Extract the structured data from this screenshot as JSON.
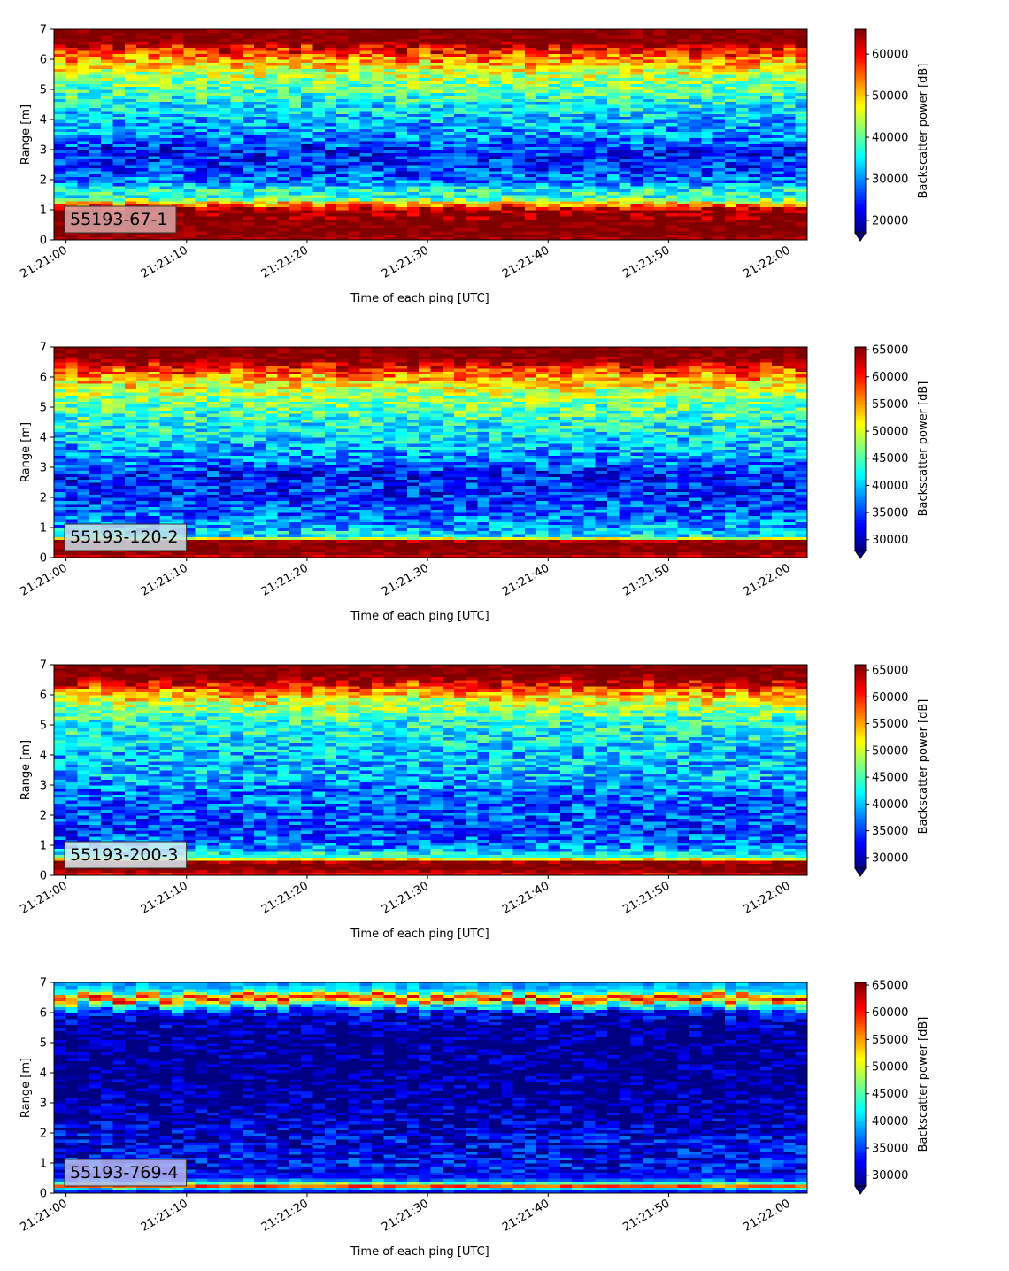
{
  "chart_data": [
    {
      "type": "heatmap",
      "label_box": "55193-67-1",
      "xlabel": "Time of each ping [UTC]",
      "ylabel": "Range [m]",
      "x_ticks": [
        "21:21:00",
        "21:21:10",
        "21:21:20",
        "21:21:30",
        "21:21:40",
        "21:21:50",
        "21:22:00"
      ],
      "y_ticks": [
        0,
        1,
        2,
        3,
        4,
        5,
        6,
        7
      ],
      "xlim_seconds": [
        -1,
        61.5
      ],
      "ylim": [
        0,
        7
      ],
      "colorbar_label": "Backscatter power [dB]",
      "colorbar_ticks": [
        20000,
        30000,
        40000,
        50000,
        60000
      ],
      "colorbar_range": [
        17000,
        66000
      ],
      "colormap": "jet",
      "label_box_color": "#d9a7a7",
      "profile": [
        {
          "z": 0.0,
          "v": 64000
        },
        {
          "z": 0.25,
          "v": 66000
        },
        {
          "z": 1.0,
          "v": 66000
        },
        {
          "z": 1.2,
          "v": 52000
        },
        {
          "z": 1.4,
          "v": 38000
        },
        {
          "z": 1.7,
          "v": 36000
        },
        {
          "z": 1.9,
          "v": 30000
        },
        {
          "z": 2.3,
          "v": 26000
        },
        {
          "z": 3.0,
          "v": 24000
        },
        {
          "z": 3.4,
          "v": 30000
        },
        {
          "z": 4.0,
          "v": 32000
        },
        {
          "z": 4.6,
          "v": 36000
        },
        {
          "z": 5.2,
          "v": 41000
        },
        {
          "z": 5.7,
          "v": 47000
        },
        {
          "z": 6.2,
          "v": 56000
        },
        {
          "z": 6.6,
          "v": 66000
        },
        {
          "z": 7.0,
          "v": 66000
        }
      ]
    },
    {
      "type": "heatmap",
      "label_box": "55193-120-2",
      "xlabel": "Time of each ping [UTC]",
      "ylabel": "Range [m]",
      "x_ticks": [
        "21:21:00",
        "21:21:10",
        "21:21:20",
        "21:21:30",
        "21:21:40",
        "21:21:50",
        "21:22:00"
      ],
      "y_ticks": [
        0,
        1,
        2,
        3,
        4,
        5,
        6,
        7
      ],
      "xlim_seconds": [
        -1,
        61.5
      ],
      "ylim": [
        0,
        7
      ],
      "colorbar_label": "Backscatter power [dB]",
      "colorbar_ticks": [
        30000,
        35000,
        40000,
        45000,
        50000,
        55000,
        60000,
        65000
      ],
      "colorbar_range": [
        28000,
        65500
      ],
      "colormap": "jet",
      "label_box_color": "#c9dfe6",
      "profile": [
        {
          "z": 0.0,
          "v": 62000
        },
        {
          "z": 0.2,
          "v": 65500
        },
        {
          "z": 0.55,
          "v": 65500
        },
        {
          "z": 0.7,
          "v": 42000
        },
        {
          "z": 1.0,
          "v": 39000
        },
        {
          "z": 1.5,
          "v": 36000
        },
        {
          "z": 2.2,
          "v": 34000
        },
        {
          "z": 2.8,
          "v": 33500
        },
        {
          "z": 3.3,
          "v": 38000
        },
        {
          "z": 4.0,
          "v": 41000
        },
        {
          "z": 4.7,
          "v": 44000
        },
        {
          "z": 5.3,
          "v": 47000
        },
        {
          "z": 5.9,
          "v": 53000
        },
        {
          "z": 6.3,
          "v": 60000
        },
        {
          "z": 6.6,
          "v": 65500
        },
        {
          "z": 7.0,
          "v": 65500
        }
      ]
    },
    {
      "type": "heatmap",
      "label_box": "55193-200-3",
      "xlabel": "Time of each ping [UTC]",
      "ylabel": "Range [m]",
      "x_ticks": [
        "21:21:00",
        "21:21:10",
        "21:21:20",
        "21:21:30",
        "21:21:40",
        "21:21:50",
        "21:22:00"
      ],
      "y_ticks": [
        0,
        1,
        2,
        3,
        4,
        5,
        6,
        7
      ],
      "xlim_seconds": [
        -1,
        61.5
      ],
      "ylim": [
        0,
        7
      ],
      "colorbar_label": "Backscatter power [dB]",
      "colorbar_ticks": [
        30000,
        35000,
        40000,
        45000,
        50000,
        55000,
        60000,
        65000
      ],
      "colorbar_range": [
        28000,
        66000
      ],
      "colormap": "jet",
      "label_box_color": "#d7ecf1",
      "profile": [
        {
          "z": 0.0,
          "v": 60000
        },
        {
          "z": 0.2,
          "v": 66000
        },
        {
          "z": 0.45,
          "v": 66000
        },
        {
          "z": 0.6,
          "v": 45000
        },
        {
          "z": 1.0,
          "v": 37000
        },
        {
          "z": 1.5,
          "v": 35000
        },
        {
          "z": 2.2,
          "v": 36000
        },
        {
          "z": 2.8,
          "v": 37000
        },
        {
          "z": 3.3,
          "v": 40000
        },
        {
          "z": 4.0,
          "v": 40000
        },
        {
          "z": 4.6,
          "v": 42000
        },
        {
          "z": 5.2,
          "v": 44000
        },
        {
          "z": 5.8,
          "v": 50000
        },
        {
          "z": 6.3,
          "v": 60000
        },
        {
          "z": 6.6,
          "v": 66000
        },
        {
          "z": 7.0,
          "v": 66000
        }
      ]
    },
    {
      "type": "heatmap",
      "label_box": "55193-769-4",
      "xlabel": "Time of each ping [UTC]",
      "ylabel": "Range [m]",
      "x_ticks": [
        "21:21:00",
        "21:21:10",
        "21:21:20",
        "21:21:30",
        "21:21:40",
        "21:21:50",
        "21:22:00"
      ],
      "y_ticks": [
        0,
        1,
        2,
        3,
        4,
        5,
        6,
        7
      ],
      "xlim_seconds": [
        -1,
        61.5
      ],
      "ylim": [
        0,
        7
      ],
      "colorbar_label": "Backscatter power [dB]",
      "colorbar_ticks": [
        30000,
        35000,
        40000,
        45000,
        50000,
        55000,
        60000,
        65000
      ],
      "colorbar_range": [
        28000,
        65500
      ],
      "colormap": "jet",
      "label_box_color": "#b8b8ee",
      "profile": [
        {
          "z": 0.0,
          "v": 30000
        },
        {
          "z": 0.15,
          "v": 40000
        },
        {
          "z": 0.25,
          "v": 60000
        },
        {
          "z": 0.35,
          "v": 45000
        },
        {
          "z": 0.5,
          "v": 33000
        },
        {
          "z": 1.0,
          "v": 32500
        },
        {
          "z": 1.8,
          "v": 32000
        },
        {
          "z": 2.5,
          "v": 29500
        },
        {
          "z": 4.0,
          "v": 28500
        },
        {
          "z": 5.5,
          "v": 28500
        },
        {
          "z": 6.0,
          "v": 32000
        },
        {
          "z": 6.3,
          "v": 45000
        },
        {
          "z": 6.5,
          "v": 62000
        },
        {
          "z": 6.7,
          "v": 42000
        },
        {
          "z": 7.0,
          "v": 38000
        }
      ]
    }
  ]
}
